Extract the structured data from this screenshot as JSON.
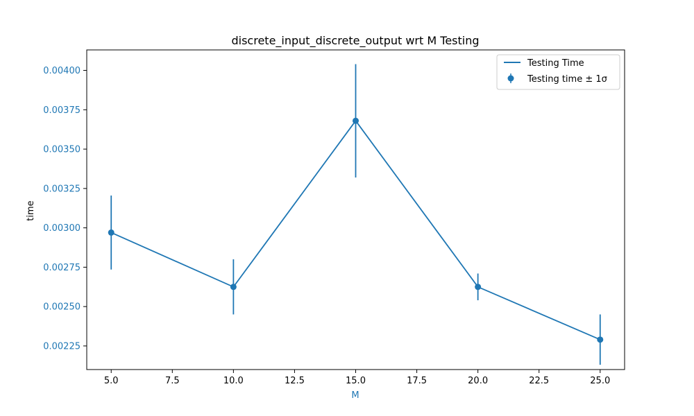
{
  "chart_data": {
    "type": "line",
    "title": "discrete_input_discrete_output wrt M Testing",
    "xlabel": "M",
    "ylabel": "time",
    "xlim": [
      4.0,
      26.0
    ],
    "ylim": [
      0.0021,
      0.00413
    ],
    "x_ticks": [
      5.0,
      7.5,
      10.0,
      12.5,
      15.0,
      17.5,
      20.0,
      22.5,
      25.0
    ],
    "x_tick_labels": [
      "5.0",
      "7.5",
      "10.0",
      "12.5",
      "15.0",
      "17.5",
      "20.0",
      "22.5",
      "25.0"
    ],
    "y_ticks": [
      0.00225,
      0.0025,
      0.00275,
      0.003,
      0.00325,
      0.0035,
      0.00375,
      0.004
    ],
    "y_tick_labels": [
      "0.00225",
      "0.00250",
      "0.00275",
      "0.00300",
      "0.00325",
      "0.00350",
      "0.00375",
      "0.00400"
    ],
    "x": [
      5,
      10,
      15,
      20,
      25
    ],
    "series": [
      {
        "name": "Testing Time",
        "values": [
          0.00297,
          0.002625,
          0.00368,
          0.002625,
          0.00229
        ]
      },
      {
        "name": "Testing time ± 1σ",
        "values": [
          0.00297,
          0.002625,
          0.00368,
          0.002625,
          0.00229
        ],
        "errors": [
          0.000235,
          0.000175,
          0.00036,
          8.5e-05,
          0.00016
        ]
      }
    ],
    "legend_position": "top-right",
    "grid": false,
    "colors": {
      "series": "#1f77b4",
      "ytick_color": "#1f77b4",
      "xlabel_color": "#1f77b4",
      "axes": "#000000"
    }
  }
}
